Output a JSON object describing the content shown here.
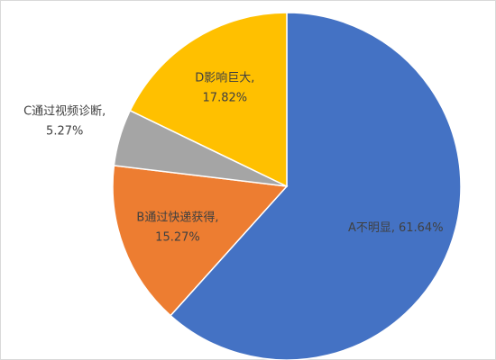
{
  "chart_data": {
    "type": "pie",
    "categories": [
      "A不明显",
      "B通过快递获得",
      "C通过视频诊断",
      "D影响巨大"
    ],
    "values": [
      61.64,
      15.27,
      5.27,
      17.82
    ],
    "value_labels": [
      "61.64%",
      "15.27%",
      "5.27%",
      "17.82%"
    ],
    "label_separator": ",",
    "colors": [
      "#4472c4",
      "#ed7d31",
      "#a5a5a5",
      "#ffc000"
    ]
  }
}
